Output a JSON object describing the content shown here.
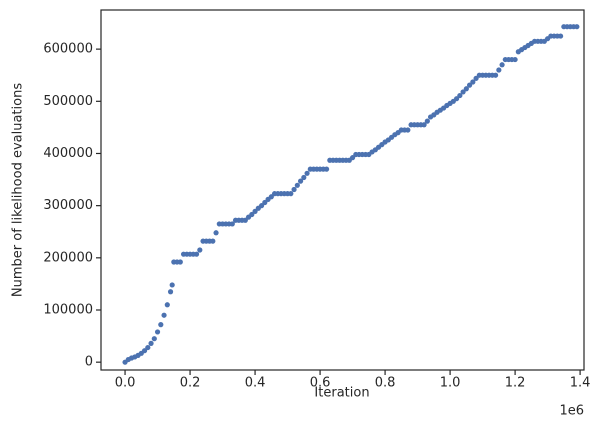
{
  "chart_data": {
    "type": "scatter",
    "xlabel": "Iteration",
    "ylabel": "Number of likelihood evaluations",
    "x_offset_label": "1e6",
    "color": "#4c72b0",
    "xlim": [
      -74000,
      1412000
    ],
    "ylim": [
      -15000,
      675000
    ],
    "xticks": [
      {
        "value": 0,
        "label": "0.0"
      },
      {
        "value": 200000,
        "label": "0.2"
      },
      {
        "value": 400000,
        "label": "0.4"
      },
      {
        "value": 600000,
        "label": "0.6"
      },
      {
        "value": 800000,
        "label": "0.8"
      },
      {
        "value": 1000000,
        "label": "1.0"
      },
      {
        "value": 1200000,
        "label": "1.2"
      },
      {
        "value": 1400000,
        "label": "1.4"
      }
    ],
    "yticks": [
      0,
      100000,
      200000,
      300000,
      400000,
      500000,
      600000
    ],
    "x": [
      0,
      10000,
      20000,
      30000,
      40000,
      50000,
      60000,
      70000,
      80000,
      90000,
      100000,
      110000,
      120000,
      130000,
      140000,
      145000,
      150000,
      160000,
      170000,
      180000,
      190000,
      200000,
      210000,
      220000,
      230000,
      240000,
      250000,
      260000,
      270000,
      280000,
      290000,
      300000,
      310000,
      320000,
      330000,
      340000,
      350000,
      360000,
      370000,
      380000,
      390000,
      400000,
      410000,
      420000,
      430000,
      440000,
      450000,
      460000,
      470000,
      480000,
      490000,
      500000,
      510000,
      520000,
      530000,
      540000,
      550000,
      560000,
      570000,
      580000,
      590000,
      600000,
      610000,
      620000,
      630000,
      640000,
      650000,
      660000,
      670000,
      680000,
      690000,
      700000,
      710000,
      720000,
      730000,
      740000,
      750000,
      760000,
      770000,
      780000,
      790000,
      800000,
      810000,
      820000,
      830000,
      840000,
      850000,
      860000,
      870000,
      880000,
      890000,
      900000,
      910000,
      920000,
      930000,
      940000,
      950000,
      960000,
      970000,
      980000,
      990000,
      1000000,
      1010000,
      1020000,
      1030000,
      1040000,
      1050000,
      1060000,
      1070000,
      1080000,
      1090000,
      1100000,
      1110000,
      1120000,
      1130000,
      1140000,
      1150000,
      1160000,
      1170000,
      1180000,
      1190000,
      1200000,
      1210000,
      1220000,
      1230000,
      1240000,
      1250000,
      1260000,
      1270000,
      1280000,
      1290000,
      1300000,
      1310000,
      1320000,
      1330000,
      1340000,
      1350000,
      1360000,
      1370000,
      1380000,
      1390000
    ],
    "values": [
      0,
      5000,
      8000,
      10000,
      13000,
      17000,
      22000,
      28000,
      36000,
      45000,
      58000,
      72000,
      90000,
      110000,
      135000,
      148000,
      192000,
      192000,
      192000,
      207000,
      207000,
      207000,
      207000,
      207000,
      215000,
      232000,
      232000,
      232000,
      232000,
      248000,
      265000,
      265000,
      265000,
      265000,
      265000,
      272000,
      272000,
      272000,
      272000,
      278000,
      283000,
      289000,
      295000,
      300000,
      306000,
      312000,
      317000,
      323000,
      323000,
      323000,
      323000,
      323000,
      323000,
      331000,
      339000,
      347000,
      354000,
      362000,
      370000,
      370000,
      370000,
      370000,
      370000,
      370000,
      387000,
      387000,
      387000,
      387000,
      387000,
      387000,
      387000,
      392000,
      398000,
      398000,
      398000,
      398000,
      398000,
      403000,
      407000,
      412000,
      417000,
      422000,
      426000,
      431000,
      436000,
      440000,
      445000,
      445000,
      445000,
      455000,
      455000,
      455000,
      455000,
      455000,
      462000,
      470000,
      474000,
      479000,
      483000,
      487000,
      492000,
      496000,
      500000,
      505000,
      511000,
      518000,
      524000,
      531000,
      537000,
      544000,
      550000,
      550000,
      550000,
      550000,
      550000,
      550000,
      560000,
      570000,
      580000,
      580000,
      580000,
      580000,
      595000,
      599000,
      603000,
      607000,
      611000,
      615000,
      615000,
      615000,
      615000,
      620000,
      625000,
      625000,
      625000,
      625000,
      643000,
      643000,
      643000,
      643000,
      643000
    ]
  }
}
